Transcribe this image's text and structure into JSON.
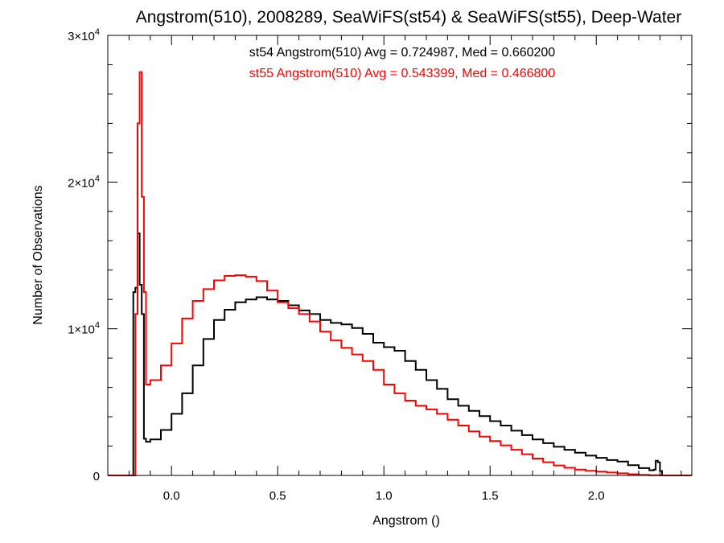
{
  "chart_data": {
    "type": "line",
    "title": "Angstrom(510), 2008289, SeaWiFS(st54) & SeaWiFS(st55), Deep-Water",
    "xlabel": "Angstrom ()",
    "ylabel": "Number of Observations",
    "xlim": [
      -0.3,
      2.45
    ],
    "ylim": [
      0,
      30000
    ],
    "x_ticks": [
      0.0,
      0.5,
      1.0,
      1.5,
      2.0
    ],
    "x_tick_labels": [
      "0.0",
      "0.5",
      "1.0",
      "1.5",
      "2.0"
    ],
    "y_ticks": [
      0,
      10000,
      20000,
      30000
    ],
    "y_tick_labels": [
      {
        "base": "0",
        "exp": ""
      },
      {
        "base": "1×10",
        "exp": "4"
      },
      {
        "base": "2×10",
        "exp": "4"
      },
      {
        "base": "3×10",
        "exp": "4"
      }
    ],
    "grid": false,
    "series": [
      {
        "name": "st54",
        "color": "#000000",
        "annotation": "st54 Angstrom(510) Avg = 0.724987, Med = 0.660200",
        "points": [
          [
            -0.3,
            0
          ],
          [
            -0.19,
            0
          ],
          [
            -0.18,
            12500
          ],
          [
            -0.17,
            12800
          ],
          [
            -0.16,
            16500
          ],
          [
            -0.15,
            13000
          ],
          [
            -0.14,
            11000
          ],
          [
            -0.13,
            2500
          ],
          [
            -0.12,
            2300
          ],
          [
            -0.1,
            2450
          ],
          [
            -0.05,
            3100
          ],
          [
            0.0,
            4200
          ],
          [
            0.05,
            5600
          ],
          [
            0.1,
            7500
          ],
          [
            0.15,
            9300
          ],
          [
            0.2,
            10600
          ],
          [
            0.25,
            11300
          ],
          [
            0.3,
            11800
          ],
          [
            0.35,
            12000
          ],
          [
            0.4,
            12150
          ],
          [
            0.45,
            12000
          ],
          [
            0.5,
            11900
          ],
          [
            0.55,
            11600
          ],
          [
            0.6,
            11250
          ],
          [
            0.65,
            11000
          ],
          [
            0.7,
            10600
          ],
          [
            0.75,
            10400
          ],
          [
            0.8,
            10300
          ],
          [
            0.85,
            10050
          ],
          [
            0.9,
            9650
          ],
          [
            0.95,
            9050
          ],
          [
            1.0,
            8750
          ],
          [
            1.05,
            8500
          ],
          [
            1.1,
            7800
          ],
          [
            1.15,
            7200
          ],
          [
            1.2,
            6500
          ],
          [
            1.25,
            5900
          ],
          [
            1.3,
            5200
          ],
          [
            1.35,
            4750
          ],
          [
            1.4,
            4400
          ],
          [
            1.45,
            4050
          ],
          [
            1.5,
            3700
          ],
          [
            1.55,
            3400
          ],
          [
            1.6,
            3050
          ],
          [
            1.65,
            2750
          ],
          [
            1.7,
            2450
          ],
          [
            1.75,
            2200
          ],
          [
            1.8,
            1950
          ],
          [
            1.85,
            1750
          ],
          [
            1.9,
            1550
          ],
          [
            1.95,
            1350
          ],
          [
            2.0,
            1200
          ],
          [
            2.05,
            1050
          ],
          [
            2.1,
            950
          ],
          [
            2.15,
            700
          ],
          [
            2.2,
            500
          ],
          [
            2.25,
            350
          ],
          [
            2.27,
            400
          ],
          [
            2.28,
            1000
          ],
          [
            2.29,
            900
          ],
          [
            2.3,
            300
          ],
          [
            2.31,
            0
          ],
          [
            2.45,
            0
          ]
        ]
      },
      {
        "name": "st55",
        "color": "#ff0000",
        "annotation": "st55 Angstrom(510) Avg = 0.543399, Med = 0.466800",
        "points": [
          [
            -0.3,
            0
          ],
          [
            -0.18,
            0
          ],
          [
            -0.17,
            11000
          ],
          [
            -0.16,
            24000
          ],
          [
            -0.15,
            27500
          ],
          [
            -0.14,
            19000
          ],
          [
            -0.13,
            12500
          ],
          [
            -0.12,
            6200
          ],
          [
            -0.1,
            6500
          ],
          [
            -0.05,
            7500
          ],
          [
            0.0,
            9000
          ],
          [
            0.05,
            10700
          ],
          [
            0.1,
            11900
          ],
          [
            0.15,
            12700
          ],
          [
            0.2,
            13300
          ],
          [
            0.25,
            13600
          ],
          [
            0.3,
            13650
          ],
          [
            0.35,
            13550
          ],
          [
            0.4,
            13250
          ],
          [
            0.45,
            12600
          ],
          [
            0.5,
            11800
          ],
          [
            0.55,
            11400
          ],
          [
            0.6,
            11000
          ],
          [
            0.65,
            10500
          ],
          [
            0.7,
            9800
          ],
          [
            0.75,
            9200
          ],
          [
            0.8,
            8700
          ],
          [
            0.85,
            8250
          ],
          [
            0.9,
            7800
          ],
          [
            0.95,
            7200
          ],
          [
            1.0,
            6200
          ],
          [
            1.05,
            5600
          ],
          [
            1.1,
            5100
          ],
          [
            1.15,
            4750
          ],
          [
            1.2,
            4500
          ],
          [
            1.25,
            4200
          ],
          [
            1.3,
            3800
          ],
          [
            1.35,
            3400
          ],
          [
            1.4,
            3000
          ],
          [
            1.45,
            2650
          ],
          [
            1.5,
            2350
          ],
          [
            1.55,
            2050
          ],
          [
            1.6,
            1750
          ],
          [
            1.65,
            1450
          ],
          [
            1.7,
            1150
          ],
          [
            1.75,
            900
          ],
          [
            1.8,
            680
          ],
          [
            1.85,
            520
          ],
          [
            1.9,
            400
          ],
          [
            1.95,
            320
          ],
          [
            2.0,
            260
          ],
          [
            2.05,
            200
          ],
          [
            2.1,
            140
          ],
          [
            2.15,
            80
          ],
          [
            2.2,
            40
          ],
          [
            2.25,
            15
          ],
          [
            2.3,
            0
          ],
          [
            2.45,
            0
          ]
        ]
      }
    ]
  }
}
